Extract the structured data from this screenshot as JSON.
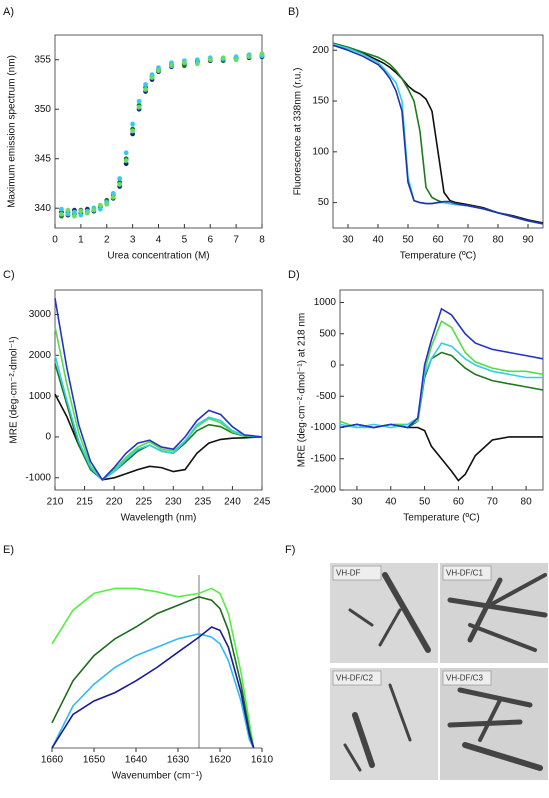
{
  "chart_data": [
    {
      "type": "scatter",
      "panel_label": "A)",
      "xlabel": "Urea concentration (M)",
      "ylabel": "Maximum emission spectrum (nm)",
      "xlim": [
        0,
        8
      ],
      "xticks": [
        0,
        1,
        2,
        3,
        4,
        5,
        6,
        7,
        8
      ],
      "ylim": [
        338,
        357.5
      ],
      "yticks": [
        340,
        345,
        350,
        355
      ],
      "frame": true,
      "x": [
        0.25,
        0.5,
        0.75,
        1,
        1.25,
        1.5,
        1.75,
        2,
        2.25,
        2.5,
        2.75,
        3,
        3.25,
        3.5,
        3.75,
        4,
        4.5,
        5,
        5.5,
        6,
        6.5,
        7,
        7.5,
        8
      ],
      "series": [
        {
          "color": "#1a237e",
          "values": [
            339.6,
            339.3,
            339.8,
            339.5,
            339.9,
            339.7,
            340.2,
            340.5,
            341.0,
            342.2,
            344.5,
            347.5,
            350.0,
            351.8,
            353.0,
            353.8,
            354.3,
            354.6,
            354.8,
            354.9,
            355.0,
            355.1,
            355.2,
            355.3
          ]
        },
        {
          "color": "#1e7a1e",
          "values": [
            339.2,
            339.6,
            339.4,
            339.8,
            339.6,
            340.0,
            340.1,
            340.8,
            341.3,
            342.6,
            345.0,
            348.0,
            350.4,
            352.2,
            353.3,
            354.0,
            354.5,
            354.4,
            354.9,
            355.1,
            354.9,
            355.2,
            355.4,
            355.5
          ]
        },
        {
          "color": "#33ccee",
          "values": [
            339.9,
            339.4,
            339.6,
            339.3,
            339.7,
            340.0,
            339.9,
            340.6,
            341.5,
            343.0,
            345.6,
            348.5,
            350.8,
            352.5,
            353.5,
            354.2,
            354.7,
            354.9,
            355.0,
            355.2,
            355.1,
            355.3,
            355.5,
            355.4
          ]
        },
        {
          "color": "#66dd66",
          "values": [
            339.4,
            339.8,
            339.2,
            339.7,
            339.5,
            339.8,
            340.3,
            340.4,
            341.1,
            342.4,
            344.8,
            347.8,
            350.2,
            352.0,
            353.2,
            353.9,
            354.4,
            354.7,
            354.6,
            355.0,
            355.2,
            355.0,
            355.3,
            355.6
          ]
        }
      ]
    },
    {
      "type": "line",
      "panel_label": "B)",
      "xlabel": "Temperature (ºC)",
      "ylabel": "Fluorescence at 338nm (r.u.)",
      "xlim": [
        25,
        95
      ],
      "xticks": [
        30,
        40,
        50,
        60,
        70,
        80,
        90
      ],
      "ylim": [
        25,
        215
      ],
      "yticks": [
        50,
        100,
        150,
        200
      ],
      "frame": true,
      "x": [
        25,
        30,
        35,
        40,
        42,
        44,
        46,
        48,
        50,
        52,
        54,
        56,
        58,
        60,
        62,
        64,
        66,
        70,
        75,
        80,
        85,
        90,
        95
      ],
      "series": [
        {
          "color": "#111111",
          "values": [
            205,
            202,
            197,
            190,
            187,
            183,
            178,
            172,
            165,
            160,
            157,
            152,
            140,
            100,
            60,
            52,
            50,
            48,
            45,
            40,
            37,
            33,
            30
          ]
        },
        {
          "color": "#1e7a1e",
          "values": [
            207,
            203,
            198,
            193,
            190,
            186,
            180,
            172,
            162,
            150,
            120,
            65,
            55,
            52,
            50,
            49,
            48,
            47,
            44,
            40,
            36,
            32,
            29
          ]
        },
        {
          "color": "#33ccee",
          "values": [
            206,
            202,
            196,
            188,
            182,
            175,
            168,
            150,
            75,
            52,
            50,
            49,
            49,
            50,
            50,
            49,
            48,
            47,
            44,
            40,
            36,
            32,
            29
          ]
        },
        {
          "color": "#2233aa",
          "values": [
            205,
            200,
            194,
            186,
            180,
            172,
            160,
            140,
            70,
            52,
            50,
            49,
            49,
            50,
            51,
            51,
            49,
            47,
            44,
            40,
            36,
            32,
            29
          ]
        }
      ]
    },
    {
      "type": "line",
      "panel_label": "C)",
      "xlabel": "Wavelength (nm)",
      "ylabel": "MRE (deg·cm⁻²·dmol⁻¹)",
      "xlim": [
        210,
        245
      ],
      "xticks": [
        210,
        215,
        220,
        225,
        230,
        235,
        240,
        245
      ],
      "ylim": [
        -1300,
        3600
      ],
      "yticks": [
        -1000,
        0,
        1000,
        2000,
        3000
      ],
      "frame": true,
      "x": [
        210,
        212,
        214,
        216,
        218,
        220,
        222,
        224,
        226,
        228,
        230,
        232,
        234,
        236,
        238,
        240,
        242,
        245
      ],
      "series": [
        {
          "color": "#111111",
          "values": [
            1050,
            500,
            -200,
            -750,
            -1050,
            -1000,
            -900,
            -800,
            -720,
            -750,
            -850,
            -800,
            -400,
            -150,
            -60,
            -30,
            -20,
            0
          ]
        },
        {
          "color": "#1e7a1e",
          "values": [
            1800,
            800,
            -200,
            -800,
            -1050,
            -850,
            -600,
            -350,
            -200,
            -350,
            -400,
            -150,
            150,
            300,
            250,
            100,
            20,
            0
          ]
        },
        {
          "color": "#55dd44",
          "values": [
            2700,
            1300,
            100,
            -700,
            -1050,
            -800,
            -500,
            -250,
            -120,
            -300,
            -350,
            -100,
            250,
            450,
            350,
            120,
            30,
            0
          ]
        },
        {
          "color": "#33ccee",
          "values": [
            2000,
            900,
            -100,
            -750,
            -1050,
            -850,
            -550,
            -300,
            -200,
            -350,
            -400,
            -100,
            300,
            480,
            400,
            150,
            40,
            0
          ]
        },
        {
          "color": "#2233cc",
          "values": [
            3400,
            1700,
            300,
            -600,
            -1050,
            -750,
            -400,
            -150,
            -80,
            -250,
            -300,
            0,
            400,
            650,
            550,
            250,
            50,
            0
          ]
        }
      ]
    },
    {
      "type": "line",
      "panel_label": "D)",
      "xlabel": "Temperature (ºC)",
      "ylabel": "MRE (deg·cm⁻²·dmol⁻¹) at 218 nm",
      "xlim": [
        25,
        85
      ],
      "xticks": [
        30,
        40,
        50,
        60,
        70,
        80
      ],
      "ylim": [
        -2000,
        1200
      ],
      "yticks": [
        -2000,
        -1500,
        -1000,
        -500,
        0,
        500,
        1000
      ],
      "frame": true,
      "x": [
        25,
        30,
        35,
        40,
        45,
        48,
        50,
        52,
        55,
        58,
        60,
        62,
        65,
        70,
        75,
        80,
        85
      ],
      "series": [
        {
          "color": "#111111",
          "values": [
            -1000,
            -950,
            -1000,
            -950,
            -1000,
            -1000,
            -1050,
            -1300,
            -1500,
            -1700,
            -1850,
            -1750,
            -1450,
            -1200,
            -1150,
            -1150,
            -1150
          ]
        },
        {
          "color": "#1e7a1e",
          "values": [
            -1000,
            -950,
            -1000,
            -950,
            -1000,
            -900,
            -200,
            100,
            200,
            150,
            50,
            -50,
            -150,
            -250,
            -300,
            -350,
            -400
          ]
        },
        {
          "color": "#55dd44",
          "values": [
            -900,
            -1000,
            -1000,
            -950,
            -950,
            -900,
            -100,
            300,
            700,
            600,
            400,
            200,
            50,
            -50,
            -100,
            -100,
            -150
          ]
        },
        {
          "color": "#33ccee",
          "values": [
            -950,
            -1000,
            -950,
            -1000,
            -950,
            -850,
            -150,
            100,
            350,
            300,
            200,
            100,
            0,
            -100,
            -150,
            -200,
            -200
          ]
        },
        {
          "color": "#2233cc",
          "values": [
            -1000,
            -950,
            -1000,
            -950,
            -1000,
            -850,
            0,
            400,
            900,
            800,
            650,
            500,
            350,
            250,
            200,
            150,
            100
          ]
        }
      ]
    },
    {
      "type": "line",
      "panel_label": "E)",
      "xlabel": "Wavenumber (cm⁻¹)",
      "xlim": [
        1660,
        1610
      ],
      "xticks": [
        1660,
        1650,
        1640,
        1630,
        1620,
        1610
      ],
      "ylim": [
        0,
        1
      ],
      "frame": false,
      "vline": 1625,
      "x": [
        1660,
        1655,
        1650,
        1645,
        1640,
        1635,
        1630,
        1625,
        1622,
        1620,
        1618,
        1615,
        1613,
        1612
      ],
      "series": [
        {
          "color": "#55ee44",
          "values": [
            0.62,
            0.82,
            0.92,
            0.95,
            0.95,
            0.93,
            0.9,
            0.92,
            0.95,
            0.92,
            0.8,
            0.45,
            0.15,
            0.0
          ]
        },
        {
          "color": "#1e6a1e",
          "values": [
            0.15,
            0.4,
            0.55,
            0.65,
            0.72,
            0.8,
            0.85,
            0.9,
            0.88,
            0.83,
            0.7,
            0.38,
            0.1,
            0.0
          ]
        },
        {
          "color": "#33bbee",
          "values": [
            0.0,
            0.25,
            0.38,
            0.48,
            0.55,
            0.6,
            0.65,
            0.68,
            0.66,
            0.62,
            0.52,
            0.28,
            0.05,
            0.0
          ]
        },
        {
          "color": "#1a1a99",
          "values": [
            0.0,
            0.2,
            0.28,
            0.33,
            0.4,
            0.48,
            0.57,
            0.66,
            0.72,
            0.7,
            0.6,
            0.33,
            0.08,
            0.0
          ]
        }
      ]
    }
  ],
  "panel_f": {
    "panel_label": "F)",
    "images": [
      "VH-DF",
      "VH-DF/C1",
      "VH-DF/C2",
      "VH-DF/C3"
    ]
  }
}
